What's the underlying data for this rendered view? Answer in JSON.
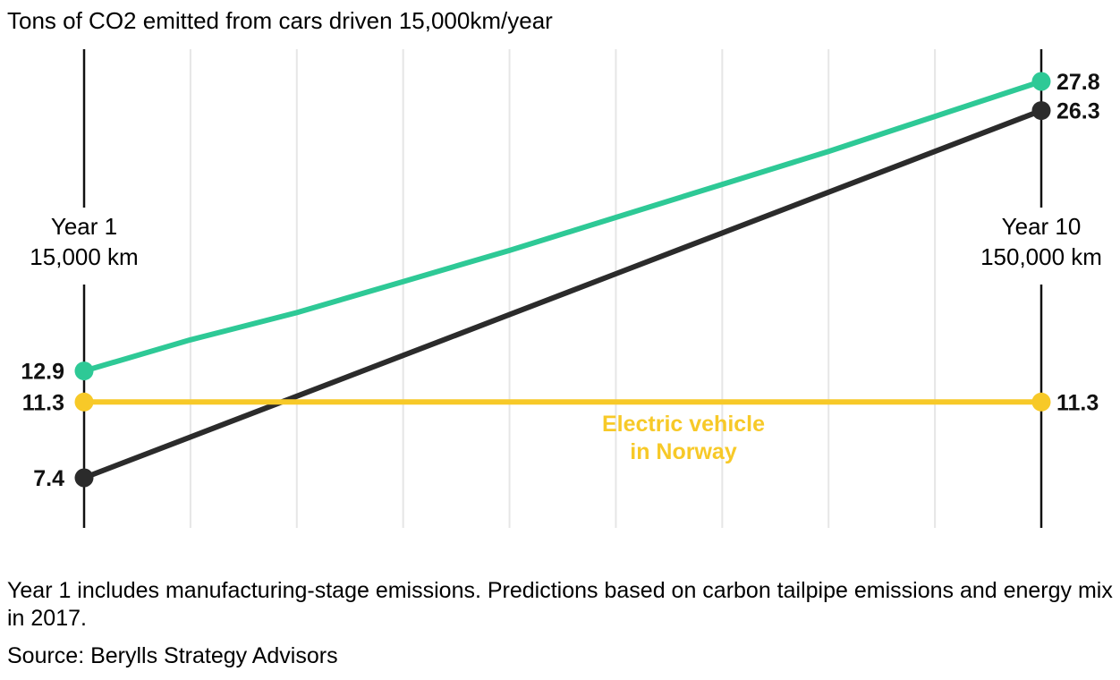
{
  "title": "Tons of CO2 emitted from cars driven 15,000km/year",
  "footnote": "Year 1 includes manufacturing-stage emissions. Predictions based on carbon tailpipe emissions and energy mix in 2017.",
  "source": "Source: Berylls Strategy Advisors",
  "axis_labels": {
    "start": {
      "line1": "Year 1",
      "line2": "15,000 km"
    },
    "end": {
      "line1": "Year 10",
      "line2": "150,000 km"
    }
  },
  "chart_data": {
    "type": "line",
    "x": [
      1,
      2,
      3,
      4,
      5,
      6,
      7,
      8,
      9,
      10
    ],
    "xlim": [
      1,
      10
    ],
    "ylim": [
      5,
      29
    ],
    "grid": true,
    "series": [
      {
        "color": "#2ec996",
        "values": [
          12.9,
          14.5,
          15.9,
          17.5,
          19.1,
          20.8,
          22.5,
          24.2,
          26.0,
          27.8
        ],
        "start_label": "12.9",
        "end_label": "27.8"
      },
      {
        "color": "#2b2b2b",
        "values": [
          7.4,
          9.5,
          11.6,
          13.7,
          15.8,
          17.9,
          20.0,
          22.1,
          24.2,
          26.3
        ],
        "start_label": "7.4",
        "end_label": "26.3"
      },
      {
        "name": "Electric vehicle in Norway",
        "name_lines": [
          "Electric vehicle",
          "in Norway"
        ],
        "color": "#f7c928",
        "values": [
          11.3,
          11.3,
          11.3,
          11.3,
          11.3,
          11.3,
          11.3,
          11.3,
          11.3,
          11.3
        ],
        "start_label": "11.3",
        "end_label": "11.3"
      }
    ]
  }
}
